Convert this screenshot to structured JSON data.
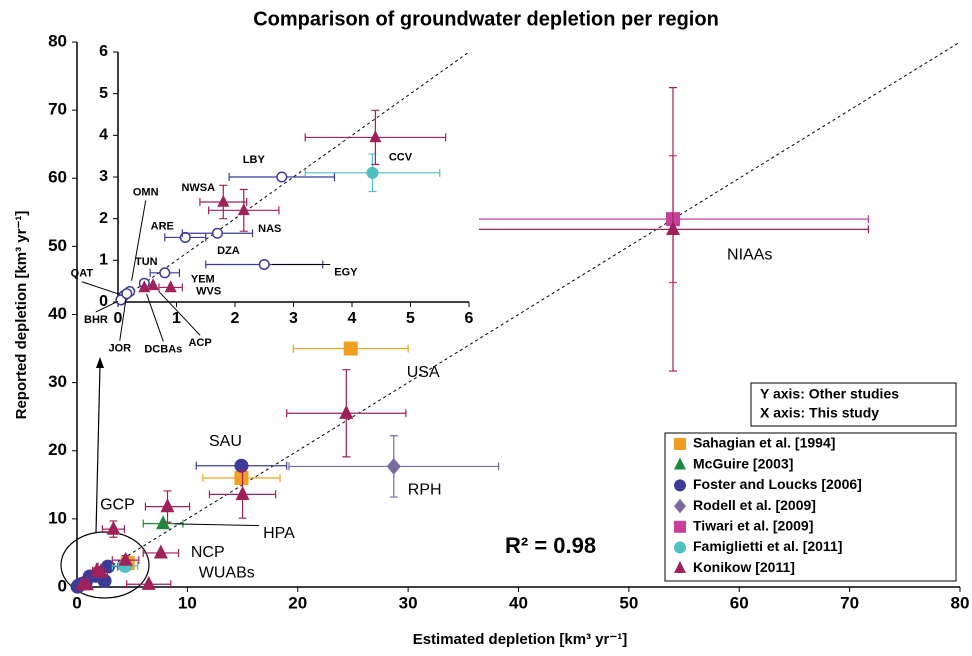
{
  "chart_data": [
    {
      "type": "scatter",
      "title": "Comparison of groundwater depletion per region",
      "x_label": "Estimated depletion [km³ yr⁻¹]",
      "y_label": "Reported depletion [km³ yr⁻¹]",
      "annotation": "R² = 0.98",
      "info_box": [
        "Y axis: Other studies",
        "X axis: This study"
      ],
      "xlim": [
        0,
        80
      ],
      "ylim": [
        0,
        80
      ],
      "xticks": [
        0,
        10,
        20,
        30,
        40,
        50,
        60,
        70,
        80
      ],
      "yticks": [
        0,
        10,
        20,
        30,
        40,
        50,
        60,
        70,
        80
      ],
      "identity_line": true,
      "series": [
        {
          "name": "Sahagian et al. [1994]",
          "color": "#f0a01e",
          "marker": "square",
          "x": [
            24.8,
            14.9,
            4.6
          ],
          "values": [
            35,
            16,
            3.5
          ],
          "xerr": [
            5.2,
            3.5,
            null
          ],
          "yerr": [
            null,
            null,
            null
          ],
          "labels": [
            "USA",
            null,
            null
          ]
        },
        {
          "name": "McGuire [2003]",
          "color": "#1e8a3c",
          "marker": "triangle",
          "x": [
            7.8
          ],
          "values": [
            9.3
          ],
          "xerr": [
            1.8
          ],
          "yerr": [
            null
          ],
          "labels": [
            "HPA"
          ]
        },
        {
          "name": "Foster and Loucks [2006]",
          "color": "#3c3c96",
          "marker": "circle",
          "x": [
            14.9,
            2.8,
            1.15,
            1.7,
            2.5,
            0.8,
            0.45,
            0.2,
            0.1,
            0.05,
            0.15
          ],
          "values": [
            17.8,
            3.0,
            1.55,
            1.65,
            0.9,
            0.7,
            0.45,
            0.25,
            0.15,
            0.05,
            0.2
          ],
          "xerr": [
            4.1,
            0.9,
            null,
            null,
            null,
            null,
            null,
            null,
            null,
            null,
            null
          ],
          "yerr": [
            null,
            null,
            null,
            null,
            null,
            null,
            null,
            null,
            null,
            null,
            null
          ],
          "labels": [
            "SAU",
            null,
            null,
            null,
            null,
            null,
            null,
            null,
            null,
            null,
            null
          ]
        },
        {
          "name": "Rodell et al. [2009]",
          "color": "#7a6aa0",
          "marker": "diamond",
          "x": [
            28.7
          ],
          "values": [
            17.7
          ],
          "xerr": [
            9.5
          ],
          "yerr": [
            4.5
          ],
          "labels": [
            "RPH"
          ]
        },
        {
          "name": "Tiwari et al. [2009]",
          "color": "#c8409a",
          "marker": "square",
          "x": [
            54
          ],
          "values": [
            54
          ],
          "xerr": [
            17.7
          ],
          "yerr": [
            9.3
          ],
          "labels": [
            null
          ]
        },
        {
          "name": "Famiglietti et al. [2011]",
          "color": "#50c0c0",
          "marker": "circle",
          "x": [
            4.35
          ],
          "values": [
            3.1
          ],
          "xerr": [
            1.15
          ],
          "yerr": [
            0.45
          ],
          "labels": [
            null
          ]
        },
        {
          "name": "Konikow [2011]",
          "color": "#a0205a",
          "marker": "triangle",
          "x": [
            54,
            24.4,
            15,
            8.2,
            3.3,
            7.6,
            6.5,
            4.4,
            1.8,
            2.15,
            0.9,
            0.5
          ],
          "values": [
            52.5,
            25.5,
            13.6,
            11.8,
            8.5,
            5,
            0.4,
            3.95,
            2.4,
            2.2,
            0.35,
            0.35
          ],
          "xerr": [
            17.7,
            5.4,
            3,
            2,
            1,
            1.6,
            2,
            1.2,
            0.4,
            0.6,
            null,
            null
          ],
          "yerr": [
            20.8,
            6.4,
            3.5,
            2.3,
            1.2,
            null,
            null,
            0.65,
            0.4,
            0.5,
            null,
            null
          ],
          "labels": [
            "NIAAs",
            null,
            null,
            null,
            "GCP",
            "NCP",
            "WUABs",
            null,
            null,
            null,
            null,
            null
          ]
        }
      ]
    },
    {
      "type": "scatter",
      "xlim": [
        0,
        6
      ],
      "ylim": [
        0,
        6
      ],
      "xticks": [
        0,
        1,
        2,
        3,
        4,
        5,
        6
      ],
      "yticks": [
        0,
        1,
        2,
        3,
        4,
        5,
        6
      ],
      "identity_line": true,
      "series": [
        {
          "color": "#3c3c96",
          "marker": "circle-open",
          "x": [
            2.8,
            1.15,
            1.7,
            2.5,
            0.8,
            0.45,
            0.2,
            0.1,
            0.05,
            0.15
          ],
          "values": [
            3.0,
            1.55,
            1.65,
            0.9,
            0.7,
            0.45,
            0.25,
            0.15,
            0.05,
            0.2
          ],
          "xerr": [
            0.9,
            0.35,
            0.6,
            1.0,
            0.25,
            null,
            null,
            null,
            null,
            null
          ],
          "yerr": [
            null,
            null,
            null,
            null,
            null,
            null,
            null,
            null,
            null,
            null
          ],
          "labels": [
            "LBY",
            "ARE",
            "DZA",
            "EGY",
            "YEM",
            "TUN",
            "OMN",
            "QAT",
            "BHR",
            "JOR"
          ]
        },
        {
          "color": "#50c0c0",
          "marker": "circle",
          "x": [
            4.35
          ],
          "values": [
            3.1
          ],
          "xerr": [
            1.15
          ],
          "yerr": [
            0.45
          ],
          "labels": [
            "CCV"
          ]
        },
        {
          "color": "#a0205a",
          "marker": "triangle",
          "x": [
            4.4,
            1.8,
            2.15,
            0.45,
            0.6,
            0.9
          ],
          "values": [
            3.95,
            2.4,
            2.2,
            0.35,
            0.4,
            0.35
          ],
          "xerr": [
            1.2,
            0.4,
            0.6,
            null,
            null,
            0.2
          ],
          "yerr": [
            0.65,
            0.4,
            0.5,
            null,
            null,
            null
          ],
          "labels": [
            null,
            "NWSA",
            "NAS",
            "DCBAs",
            "ACP",
            "WVS"
          ]
        }
      ]
    }
  ]
}
